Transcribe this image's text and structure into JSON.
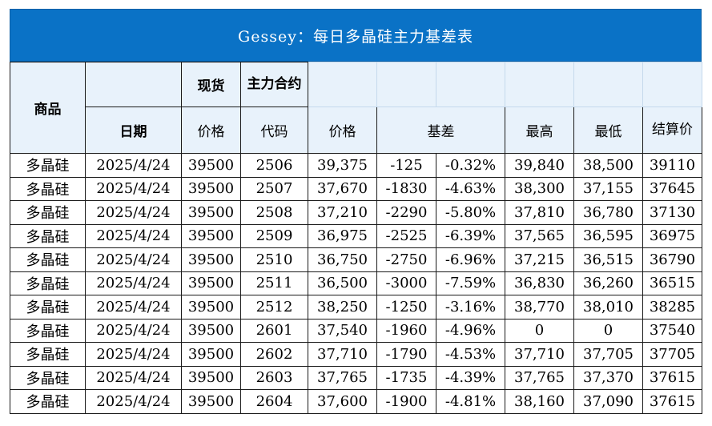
{
  "title": "Gessey：每日多晶硅主力基差表",
  "headers": {
    "product": "商品",
    "spot": "现货",
    "main_contract": "主力合约",
    "date": "日期",
    "spot_price": "价格",
    "code": "代码",
    "price": "价格",
    "basis": "基差",
    "high": "最高",
    "low": "最低",
    "settle": "结算价"
  },
  "rows": [
    {
      "product": "多晶硅",
      "date": "2025/4/24",
      "spot": "39500",
      "code": "2506",
      "price": "39,375",
      "basis": "-125",
      "basis_pct": "-0.32%",
      "high": "39,840",
      "low": "38,500",
      "settle": "39110"
    },
    {
      "product": "多晶硅",
      "date": "2025/4/24",
      "spot": "39500",
      "code": "2507",
      "price": "37,670",
      "basis": "-1830",
      "basis_pct": "-4.63%",
      "high": "38,300",
      "low": "37,155",
      "settle": "37645"
    },
    {
      "product": "多晶硅",
      "date": "2025/4/24",
      "spot": "39500",
      "code": "2508",
      "price": "37,210",
      "basis": "-2290",
      "basis_pct": "-5.80%",
      "high": "37,810",
      "low": "36,780",
      "settle": "37130"
    },
    {
      "product": "多晶硅",
      "date": "2025/4/24",
      "spot": "39500",
      "code": "2509",
      "price": "36,975",
      "basis": "-2525",
      "basis_pct": "-6.39%",
      "high": "37,565",
      "low": "36,595",
      "settle": "36975"
    },
    {
      "product": "多晶硅",
      "date": "2025/4/24",
      "spot": "39500",
      "code": "2510",
      "price": "36,750",
      "basis": "-2750",
      "basis_pct": "-6.96%",
      "high": "37,215",
      "low": "36,515",
      "settle": "36790"
    },
    {
      "product": "多晶硅",
      "date": "2025/4/24",
      "spot": "39500",
      "code": "2511",
      "price": "36,500",
      "basis": "-3000",
      "basis_pct": "-7.59%",
      "high": "36,830",
      "low": "36,260",
      "settle": "36515"
    },
    {
      "product": "多晶硅",
      "date": "2025/4/24",
      "spot": "39500",
      "code": "2512",
      "price": "38,250",
      "basis": "-1250",
      "basis_pct": "-3.16%",
      "high": "38,770",
      "low": "38,010",
      "settle": "38285"
    },
    {
      "product": "多晶硅",
      "date": "2025/4/24",
      "spot": "39500",
      "code": "2601",
      "price": "37,540",
      "basis": "-1960",
      "basis_pct": "-4.96%",
      "high": "0",
      "low": "0",
      "settle": "37540"
    },
    {
      "product": "多晶硅",
      "date": "2025/4/24",
      "spot": "39500",
      "code": "2602",
      "price": "37,710",
      "basis": "-1790",
      "basis_pct": "-4.53%",
      "high": "37,710",
      "low": "37,705",
      "settle": "37705"
    },
    {
      "product": "多晶硅",
      "date": "2025/4/24",
      "spot": "39500",
      "code": "2603",
      "price": "37,765",
      "basis": "-1735",
      "basis_pct": "-4.39%",
      "high": "37,765",
      "low": "37,370",
      "settle": "37615"
    },
    {
      "product": "多晶硅",
      "date": "2025/4/24",
      "spot": "39500",
      "code": "2604",
      "price": "37,600",
      "basis": "-1900",
      "basis_pct": "-4.81%",
      "high": "38,160",
      "low": "37,090",
      "settle": "37615"
    }
  ],
  "colors": {
    "title_bg": "#0a72c6",
    "header_bg": "#e8f2fb",
    "product_text": "#1a4fb5",
    "date_text": "#3a55a8",
    "negative_text": "#e0151b"
  }
}
